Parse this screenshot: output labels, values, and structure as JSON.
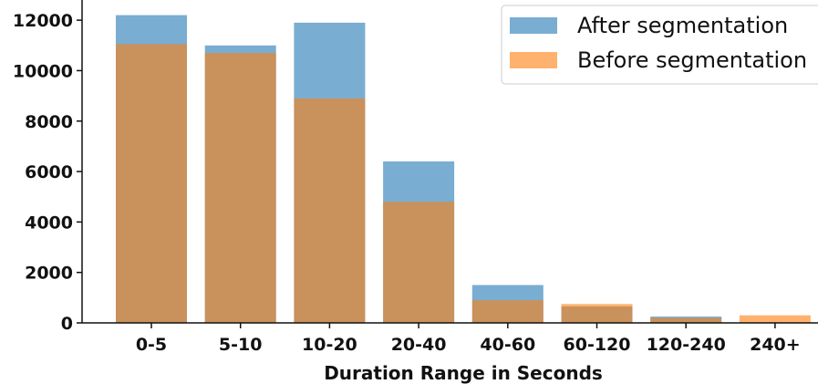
{
  "chart_data": {
    "type": "bar",
    "overlay": true,
    "categories": [
      "0-5",
      "5-10",
      "10-20",
      "20-40",
      "40-60",
      "60-120",
      "120-240",
      "240+"
    ],
    "series": [
      {
        "name": "After segmentation",
        "color": "#1f77b4",
        "alpha": 0.6,
        "values": [
          12200,
          11000,
          11900,
          6400,
          1500,
          650,
          250,
          0
        ]
      },
      {
        "name": "Before segmentation",
        "color": "#ff7f0e",
        "alpha": 0.6,
        "values": [
          11050,
          10700,
          8900,
          4800,
          900,
          750,
          200,
          300
        ]
      }
    ],
    "xlabel": "Duration Range in Seconds",
    "ylabel": "",
    "ylim": [
      0,
      12800
    ],
    "yticks": [
      0,
      2000,
      4000,
      6000,
      8000,
      10000,
      12000
    ],
    "ytick_labels": [
      "0",
      "2000",
      "4000",
      "6000",
      "8000",
      "10000",
      "12000"
    ],
    "grid": false,
    "legend_position": "top-right"
  }
}
